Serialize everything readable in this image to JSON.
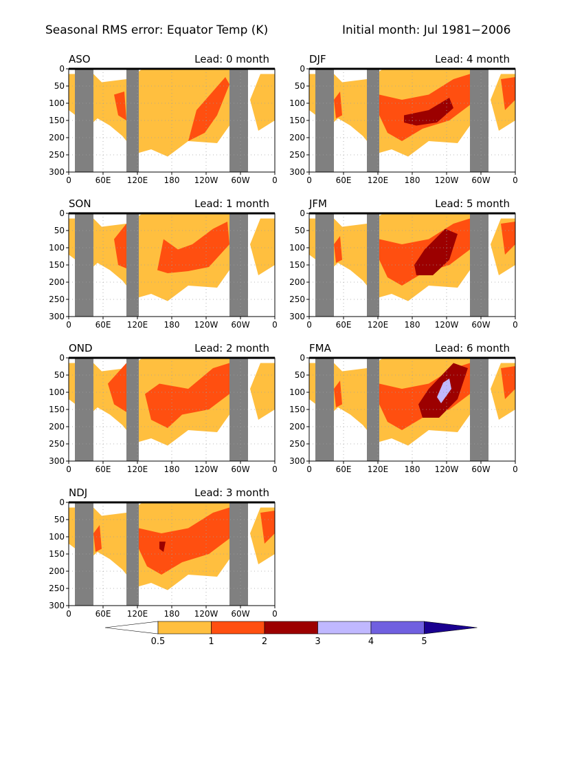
{
  "title": "Seasonal RMS error: Equator Temp (K)",
  "subtitle": "Initial month: Jul 1981−2006",
  "colors": {
    "level_05": "#ffbf3f",
    "level_1": "#ff4f10",
    "level_2": "#9c0000",
    "level_3": "#c0b8ff",
    "level_4": "#7060e0",
    "level_5": "#1a0090",
    "land_mask": "#808080",
    "grid": "#a0a0a0"
  },
  "chart_data": [
    {
      "type": "heatmap",
      "season": "ASO",
      "lead_label": "Lead: 0 month",
      "lead": 0,
      "x_ticks": [
        "0",
        "60E",
        "120E",
        "180",
        "120W",
        "60W",
        "0"
      ],
      "y_ticks": [
        "0",
        "50",
        "100",
        "150",
        "200",
        "250",
        "300"
      ],
      "ylim": [
        0,
        300
      ],
      "x_range": [
        "0",
        "0"
      ],
      "max_level": 1
    },
    {
      "type": "heatmap",
      "season": "DJF",
      "lead_label": "Lead: 4 month",
      "lead": 4,
      "x_ticks": [
        "0",
        "60E",
        "120E",
        "180",
        "120W",
        "60W",
        "0"
      ],
      "y_ticks": [
        "0",
        "50",
        "100",
        "150",
        "200",
        "250",
        "300"
      ],
      "ylim": [
        0,
        300
      ],
      "x_range": [
        "0",
        "0"
      ],
      "max_level": 2
    },
    {
      "type": "heatmap",
      "season": "SON",
      "lead_label": "Lead: 1 month",
      "lead": 1,
      "x_ticks": [
        "0",
        "60E",
        "120E",
        "180",
        "120W",
        "60W",
        "0"
      ],
      "y_ticks": [
        "0",
        "50",
        "100",
        "150",
        "200",
        "250",
        "300"
      ],
      "ylim": [
        0,
        300
      ],
      "x_range": [
        "0",
        "0"
      ],
      "max_level": 1
    },
    {
      "type": "heatmap",
      "season": "JFM",
      "lead_label": "Lead: 5 month",
      "lead": 5,
      "x_ticks": [
        "0",
        "60E",
        "120E",
        "180",
        "120W",
        "60W",
        "0"
      ],
      "y_ticks": [
        "0",
        "50",
        "100",
        "150",
        "200",
        "250",
        "300"
      ],
      "ylim": [
        0,
        300
      ],
      "x_range": [
        "0",
        "0"
      ],
      "max_level": 2
    },
    {
      "type": "heatmap",
      "season": "OND",
      "lead_label": "Lead: 2 month",
      "lead": 2,
      "x_ticks": [
        "0",
        "60E",
        "120E",
        "180",
        "120W",
        "60W",
        "0"
      ],
      "y_ticks": [
        "0",
        "50",
        "100",
        "150",
        "200",
        "250",
        "300"
      ],
      "ylim": [
        0,
        300
      ],
      "x_range": [
        "0",
        "0"
      ],
      "max_level": 1
    },
    {
      "type": "heatmap",
      "season": "FMA",
      "lead_label": "Lead: 6 month",
      "lead": 6,
      "x_ticks": [
        "0",
        "60E",
        "120E",
        "180",
        "120W",
        "60W",
        "0"
      ],
      "y_ticks": [
        "0",
        "50",
        "100",
        "150",
        "200",
        "250",
        "300"
      ],
      "ylim": [
        0,
        300
      ],
      "x_range": [
        "0",
        "0"
      ],
      "max_level": 3
    },
    {
      "type": "heatmap",
      "season": "NDJ",
      "lead_label": "Lead: 3 month",
      "lead": 3,
      "x_ticks": [
        "0",
        "60E",
        "120E",
        "180",
        "120W",
        "60W",
        "0"
      ],
      "y_ticks": [
        "0",
        "50",
        "100",
        "150",
        "200",
        "250",
        "300"
      ],
      "ylim": [
        0,
        300
      ],
      "x_range": [
        "0",
        "0"
      ],
      "max_level": 2
    }
  ],
  "colorbar": {
    "levels": [
      "0.5",
      "1",
      "2",
      "3",
      "4",
      "5"
    ],
    "colors": [
      "#ffbf3f",
      "#ff4f10",
      "#9c0000",
      "#c0b8ff",
      "#7060e0"
    ],
    "under_color": "#ffffff",
    "over_color": "#1a0090"
  }
}
